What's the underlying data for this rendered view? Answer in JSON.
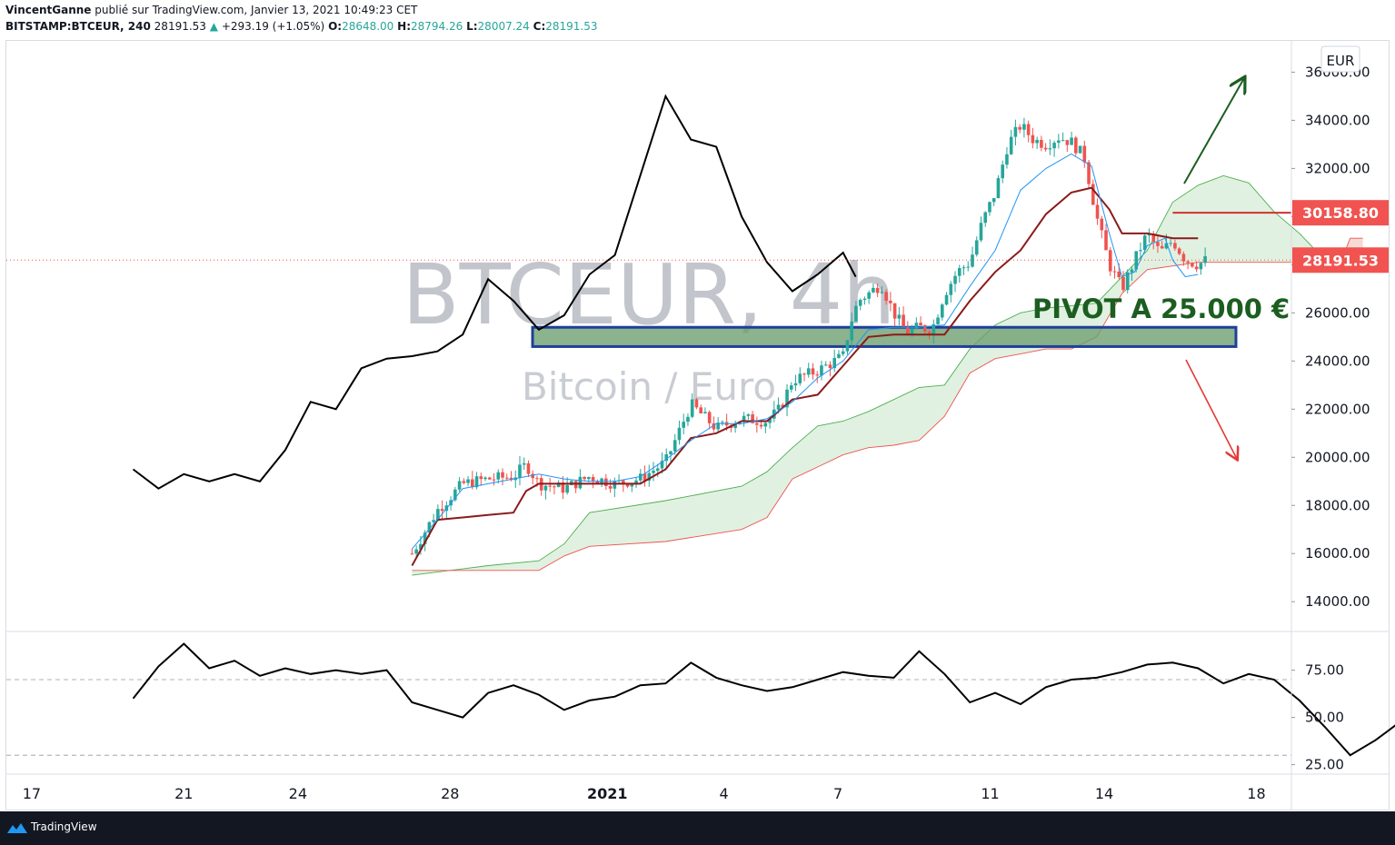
{
  "header": {
    "author": "VincentGanne",
    "published_text": "publié sur TradingView.com, Janvier 13, 2021 10:49:23 CET",
    "symbol": "BITSTAMP:BTCEUR, 240",
    "last": "28191.53",
    "change": "+293.19 (+1.05%)",
    "open_label": "O:",
    "open": "28648.00",
    "high_label": "H:",
    "high": "28794.26",
    "low_label": "L:",
    "low": "28007.24",
    "close_label": "C:",
    "close": "28191.53"
  },
  "watermark": {
    "title": "BTCEUR, 4h",
    "subtitle": "Bitcoin / Euro"
  },
  "annotation": {
    "pivot_text": "PIVOT A 25.000 €"
  },
  "footer": {
    "brand": "TradingView"
  },
  "colors": {
    "up": "#26a69a",
    "down": "#ef5350",
    "kijun": "#8b1a1a",
    "tenkan": "#2196f3",
    "chikou": "#000000",
    "cloud_bull": "#c8e6c9",
    "senkou_a": "#4caf50",
    "senkou_b": "#ef5350",
    "pivot_fill": "#6a9e6e",
    "pivot_border": "#1f3f9a",
    "pivot_text": "#1b5e20",
    "arrow_up": "#1b5e20",
    "arrow_down": "#e53935",
    "resistance": "#d32f2f"
  },
  "chart_data": [
    {
      "type": "candlestick",
      "title": "BTCEUR, 4h",
      "currency": "EUR",
      "x_ticks": [
        "17",
        "21",
        "24",
        "28",
        "2021",
        "4",
        "7",
        "11",
        "14",
        "18"
      ],
      "y_ticks": [
        14000,
        16000,
        18000,
        20000,
        22000,
        24000,
        26000,
        28000,
        30000,
        32000,
        34000,
        36000
      ],
      "y_tick_labels": [
        "14000.00",
        "16000.00",
        "18000.00",
        "20000.00",
        "22000.00",
        "24000.00",
        "26000.00",
        "28000.00",
        "30000.00",
        "32000.00",
        "34000.00",
        "36000.00"
      ],
      "ylim": [
        12800,
        37300
      ],
      "price_labels": [
        {
          "value": 30158.8,
          "text": "30158.80"
        },
        {
          "value": 28191.53,
          "text": "28191.53"
        }
      ],
      "pivot_zone": [
        24600,
        25400
      ],
      "price_path": [
        [
          16,
          16000
        ],
        [
          17,
          17800
        ],
        [
          18,
          18900
        ],
        [
          19,
          19100
        ],
        [
          20,
          19200
        ],
        [
          20.5,
          19700
        ],
        [
          21,
          18900
        ],
        [
          22,
          18700
        ],
        [
          23,
          19200
        ],
        [
          24,
          18900
        ],
        [
          25,
          19100
        ],
        [
          26,
          19800
        ],
        [
          27,
          22200
        ],
        [
          27.5,
          21700
        ],
        [
          28,
          21200
        ],
        [
          29,
          21600
        ],
        [
          30,
          21500
        ],
        [
          30.5,
          22000
        ],
        [
          31,
          23200
        ],
        [
          32,
          23600
        ],
        [
          33,
          24200
        ],
        [
          33.3,
          25600
        ],
        [
          33.6,
          26500
        ],
        [
          34,
          26800
        ],
        [
          34.5,
          27200
        ],
        [
          35,
          26000
        ],
        [
          35.5,
          25200
        ],
        [
          36,
          25400
        ],
        [
          36.5,
          25300
        ],
        [
          37,
          26800
        ],
        [
          37.5,
          27700
        ],
        [
          38,
          28100
        ],
        [
          38.5,
          29800
        ],
        [
          39,
          31000
        ],
        [
          39.5,
          33000
        ],
        [
          40,
          33800
        ],
        [
          40.5,
          33200
        ],
        [
          41,
          33000
        ],
        [
          41.5,
          33300
        ],
        [
          42,
          33100
        ],
        [
          42.5,
          32500
        ],
        [
          43,
          30000
        ],
        [
          43.5,
          28000
        ],
        [
          44,
          27000
        ],
        [
          44.5,
          28200
        ],
        [
          45,
          29300
        ],
        [
          45.5,
          28500
        ],
        [
          46,
          29000
        ],
        [
          46.5,
          28200
        ],
        [
          47,
          28000
        ],
        [
          47.3,
          28191.53
        ]
      ],
      "tenkan": [
        [
          16,
          16200
        ],
        [
          17,
          17400
        ],
        [
          18,
          18700
        ],
        [
          19,
          18900
        ],
        [
          20,
          19100
        ],
        [
          21,
          19300
        ],
        [
          22,
          19100
        ],
        [
          23,
          19000
        ],
        [
          24,
          19000
        ],
        [
          25,
          19200
        ],
        [
          26,
          19900
        ],
        [
          27,
          20700
        ],
        [
          28,
          21400
        ],
        [
          29,
          21400
        ],
        [
          30,
          21600
        ],
        [
          31,
          22300
        ],
        [
          32,
          23300
        ],
        [
          33,
          24000
        ],
        [
          34,
          25300
        ],
        [
          35,
          25400
        ],
        [
          36,
          25400
        ],
        [
          37,
          25500
        ],
        [
          38,
          27100
        ],
        [
          39,
          28600
        ],
        [
          40,
          31100
        ],
        [
          41,
          32000
        ],
        [
          42,
          32600
        ],
        [
          42.8,
          32100
        ],
        [
          43.5,
          29300
        ],
        [
          44,
          27500
        ],
        [
          44.5,
          27700
        ],
        [
          45,
          28800
        ],
        [
          45.7,
          29100
        ],
        [
          46,
          28200
        ],
        [
          46.5,
          27500
        ],
        [
          47,
          27600
        ]
      ],
      "kijun": [
        [
          16,
          15500
        ],
        [
          17,
          17400
        ],
        [
          18,
          17500
        ],
        [
          19,
          17600
        ],
        [
          20,
          17700
        ],
        [
          20.5,
          18600
        ],
        [
          21,
          18900
        ],
        [
          22,
          18900
        ],
        [
          23,
          18900
        ],
        [
          24,
          18900
        ],
        [
          25,
          18900
        ],
        [
          26,
          19500
        ],
        [
          27,
          20800
        ],
        [
          28,
          21000
        ],
        [
          29,
          21500
        ],
        [
          30,
          21500
        ],
        [
          31,
          22400
        ],
        [
          32,
          22600
        ],
        [
          33,
          23800
        ],
        [
          34,
          25000
        ],
        [
          35,
          25100
        ],
        [
          36,
          25100
        ],
        [
          37,
          25100
        ],
        [
          38,
          26500
        ],
        [
          39,
          27700
        ],
        [
          40,
          28600
        ],
        [
          41,
          30100
        ],
        [
          42,
          31000
        ],
        [
          42.8,
          31200
        ],
        [
          43.5,
          30300
        ],
        [
          44,
          29300
        ],
        [
          45,
          29300
        ],
        [
          46,
          29100
        ],
        [
          47,
          29100
        ]
      ],
      "chikou": [
        [
          5,
          19500
        ],
        [
          6,
          18700
        ],
        [
          7,
          19300
        ],
        [
          8,
          19000
        ],
        [
          9,
          19300
        ],
        [
          10,
          19000
        ],
        [
          11,
          20300
        ],
        [
          12,
          22300
        ],
        [
          13,
          22000
        ],
        [
          14,
          23700
        ],
        [
          15,
          24100
        ],
        [
          16,
          24200
        ],
        [
          17,
          24400
        ],
        [
          18,
          25100
        ],
        [
          19,
          27400
        ],
        [
          20,
          26500
        ],
        [
          21,
          25300
        ],
        [
          22,
          25900
        ],
        [
          23,
          27600
        ],
        [
          24,
          28400
        ],
        [
          25,
          31700
        ],
        [
          26,
          35000
        ],
        [
          27,
          33200
        ],
        [
          28,
          32900
        ],
        [
          29,
          30000
        ],
        [
          30,
          28100
        ],
        [
          31,
          26900
        ],
        [
          32,
          27600
        ],
        [
          33,
          28500
        ],
        [
          33.5,
          27500
        ]
      ],
      "senkou_a": [
        [
          16,
          15100
        ],
        [
          19,
          15500
        ],
        [
          21,
          15700
        ],
        [
          22,
          16400
        ],
        [
          23,
          17700
        ],
        [
          26,
          18200
        ],
        [
          29,
          18800
        ],
        [
          30,
          19400
        ],
        [
          31,
          20400
        ],
        [
          32,
          21300
        ],
        [
          33,
          21500
        ],
        [
          34,
          21900
        ],
        [
          35,
          22400
        ],
        [
          36,
          22900
        ],
        [
          37,
          23000
        ],
        [
          38,
          24500
        ],
        [
          39,
          25500
        ],
        [
          40,
          26000
        ],
        [
          41,
          26200
        ],
        [
          42,
          26300
        ],
        [
          43,
          26400
        ],
        [
          44,
          27500
        ],
        [
          45,
          28600
        ],
        [
          46,
          30600
        ],
        [
          47,
          31300
        ],
        [
          48,
          31700
        ],
        [
          49,
          31400
        ],
        [
          50,
          30200
        ],
        [
          51,
          29300
        ],
        [
          52,
          28200
        ],
        [
          53,
          28000
        ],
        [
          53.5,
          28500
        ]
      ],
      "senkou_b": [
        [
          16,
          15300
        ],
        [
          19,
          15300
        ],
        [
          21,
          15300
        ],
        [
          22,
          15900
        ],
        [
          23,
          16300
        ],
        [
          26,
          16500
        ],
        [
          29,
          17000
        ],
        [
          30,
          17500
        ],
        [
          31,
          19100
        ],
        [
          32,
          19600
        ],
        [
          33,
          20100
        ],
        [
          34,
          20400
        ],
        [
          35,
          20500
        ],
        [
          36,
          20700
        ],
        [
          37,
          21700
        ],
        [
          38,
          23500
        ],
        [
          39,
          24100
        ],
        [
          40,
          24300
        ],
        [
          41,
          24500
        ],
        [
          42,
          24500
        ],
        [
          43,
          25000
        ],
        [
          44,
          26800
        ],
        [
          45,
          27800
        ],
        [
          47,
          28100
        ],
        [
          50,
          28100
        ],
        [
          52,
          28100
        ],
        [
          52.7,
          28300
        ],
        [
          53,
          29100
        ],
        [
          53.5,
          29100
        ]
      ],
      "resistance": {
        "value": 30158.8,
        "from_x": 46
      }
    },
    {
      "type": "line",
      "title": "",
      "y_ticks": [
        25,
        50,
        75
      ],
      "y_tick_labels": [
        "25.00",
        "50.00",
        "75.00"
      ],
      "ylim": [
        20,
        95
      ],
      "levels": [
        30,
        70
      ],
      "series": [
        {
          "values": [
            [
              5,
              60
            ],
            [
              6,
              77
            ],
            [
              7,
              89
            ],
            [
              8,
              76
            ],
            [
              9,
              80
            ],
            [
              10,
              72
            ],
            [
              11,
              76
            ],
            [
              12,
              73
            ],
            [
              13,
              75
            ],
            [
              14,
              73
            ],
            [
              15,
              75
            ],
            [
              16,
              58
            ],
            [
              17,
              54
            ],
            [
              18,
              50
            ],
            [
              19,
              63
            ],
            [
              20,
              67
            ],
            [
              21,
              62
            ],
            [
              22,
              54
            ],
            [
              23,
              59
            ],
            [
              24,
              61
            ],
            [
              25,
              67
            ],
            [
              26,
              68
            ],
            [
              27,
              79
            ],
            [
              28,
              71
            ],
            [
              29,
              67
            ],
            [
              30,
              64
            ],
            [
              31,
              66
            ],
            [
              32,
              70
            ],
            [
              33,
              74
            ],
            [
              34,
              72
            ],
            [
              35,
              71
            ],
            [
              36,
              85
            ],
            [
              37,
              73
            ],
            [
              38,
              58
            ],
            [
              39,
              63
            ],
            [
              40,
              57
            ],
            [
              41,
              66
            ],
            [
              42,
              70
            ],
            [
              43,
              71
            ],
            [
              44,
              74
            ],
            [
              45,
              78
            ],
            [
              46,
              79
            ],
            [
              47,
              76
            ],
            [
              48,
              68
            ],
            [
              49,
              73
            ],
            [
              50,
              70
            ],
            [
              51,
              59
            ],
            [
              52,
              45
            ],
            [
              53,
              30
            ],
            [
              54,
              38
            ],
            [
              55,
              48
            ],
            [
              56,
              44
            ],
            [
              57,
              47
            ],
            [
              57.5,
              46
            ]
          ]
        }
      ]
    }
  ]
}
